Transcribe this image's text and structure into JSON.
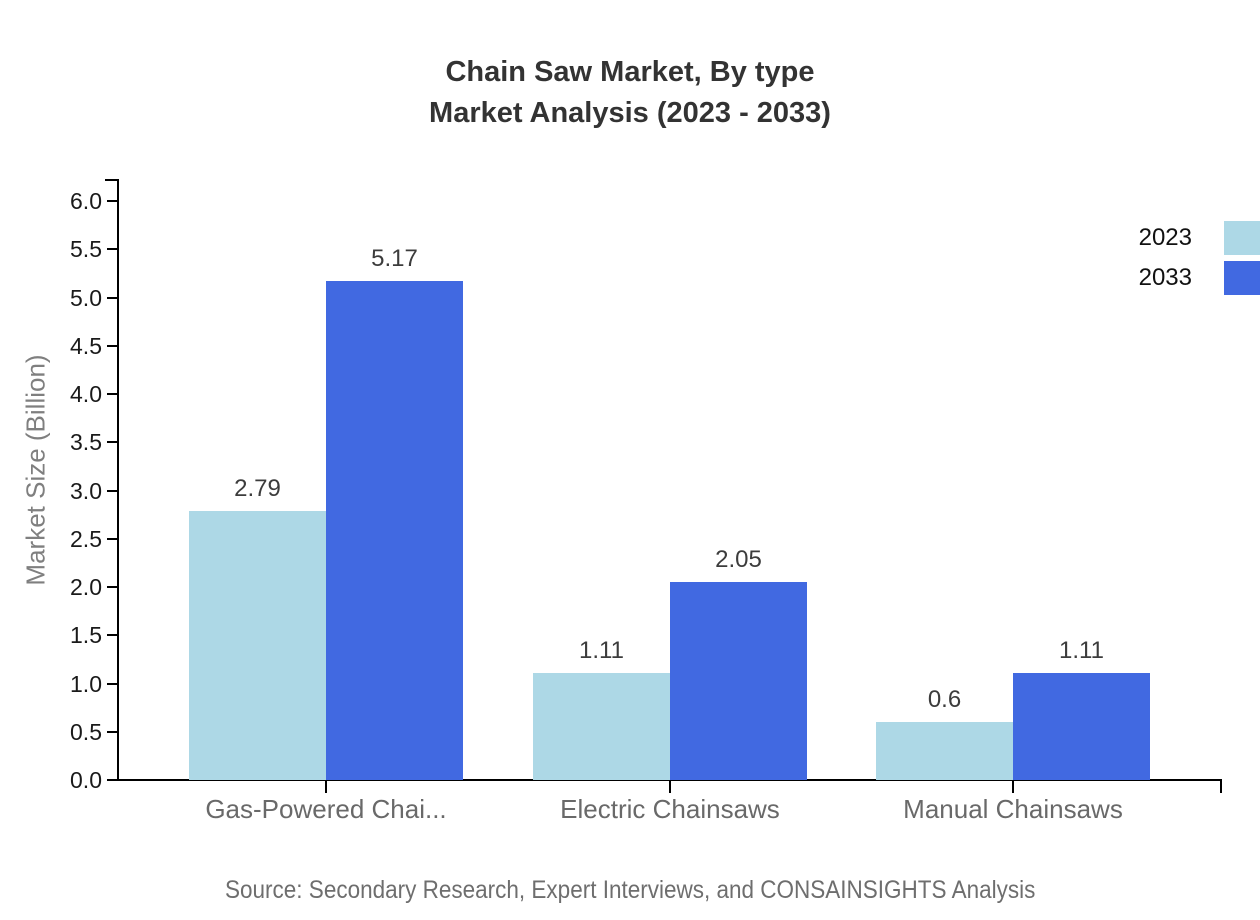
{
  "title": {
    "line1": "Chain Saw Market, By type",
    "line2": "Market Analysis (2023 - 2033)"
  },
  "source": {
    "text": "Source: Secondary Research, Expert Interviews, and CONSAINSIGHTS Analysis"
  },
  "chart_data": {
    "type": "bar",
    "title": "Chain Saw Market, By type",
    "subtitle": "Market Analysis (2023 - 2033)",
    "categories": [
      "Gas-Powered Chai...",
      "Electric Chainsaws",
      "Manual Chainsaws"
    ],
    "series": [
      {
        "name": "2023",
        "color": "#ADD8E6",
        "values": [
          2.79,
          1.11,
          0.6
        ]
      },
      {
        "name": "2033",
        "color": "#4169E1",
        "values": [
          5.17,
          2.05,
          1.11
        ]
      }
    ],
    "value_labels": [
      [
        "2.79",
        "1.11",
        "0.6"
      ],
      [
        "5.17",
        "2.05",
        "1.11"
      ]
    ],
    "ylabel": "Market Size (Billion)",
    "xlabel": "",
    "ylim": [
      0,
      6
    ],
    "ytick_step": 0.5,
    "grid": false,
    "legend_position": "top-right",
    "value_labels_shown": true
  },
  "colors": {
    "series_2023": "#ADD8E6",
    "series_2033": "#4169E1",
    "axis": "#000000",
    "title_text": "#333333",
    "tick_label_text": "#1a1a1a",
    "category_text": "#696969",
    "value_label_text": "#3c3c3c",
    "ylabel_text": "#7f7f7f",
    "source_text": "#6e6e6e",
    "background": "#ffffff"
  }
}
